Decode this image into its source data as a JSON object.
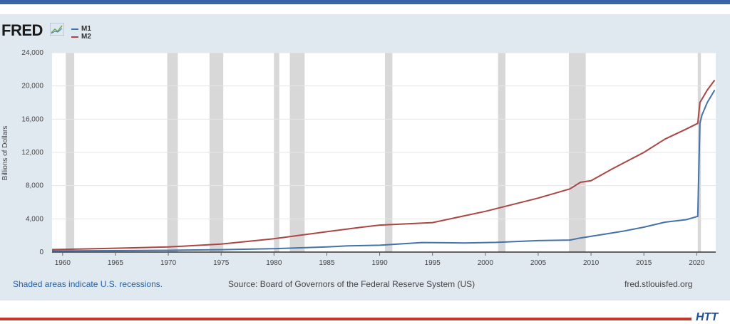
{
  "brand": {
    "logo": "FRED",
    "url": "fred.stlouisfed.org",
    "corner_logo": "HTT"
  },
  "footer": {
    "recessions_note": "Shaded areas indicate U.S. recessions.",
    "source": "Source: Board of Governors of the Federal Reserve System (US)",
    "url": "fred.stlouisfed.org"
  },
  "colors": {
    "m1": "#4572a7",
    "m2": "#aa4643",
    "recession": "#d8d8d8",
    "panel": "#e1e9f0"
  },
  "chart_data": {
    "type": "line",
    "title": "",
    "xlabel": "",
    "ylabel": "Billions of Dollars",
    "xlim": [
      1959,
      2021.8
    ],
    "ylim": [
      0,
      24000
    ],
    "yticks": [
      0,
      4000,
      8000,
      12000,
      16000,
      20000,
      24000
    ],
    "ytick_labels": [
      "0",
      "4,000",
      "8,000",
      "12,000",
      "16,000",
      "20,000",
      "24,000"
    ],
    "xticks": [
      1960,
      1965,
      1970,
      1975,
      1980,
      1985,
      1990,
      1995,
      2000,
      2005,
      2010,
      2015,
      2020
    ],
    "xtick_labels": [
      "1960",
      "1965",
      "1970",
      "1975",
      "1980",
      "1985",
      "1990",
      "1995",
      "2000",
      "2005",
      "2010",
      "2015",
      "2020"
    ],
    "legend": [
      "M1",
      "M2"
    ],
    "recessions": [
      [
        1960.3,
        1961.1
      ],
      [
        1969.9,
        1970.9
      ],
      [
        1973.9,
        1975.2
      ],
      [
        1980.0,
        1980.5
      ],
      [
        1981.5,
        1982.9
      ],
      [
        1990.5,
        1991.2
      ],
      [
        2001.2,
        2001.9
      ],
      [
        2007.9,
        2009.5
      ],
      [
        2020.1,
        2020.4
      ]
    ],
    "series": [
      {
        "name": "M1",
        "x": [
          1959,
          1965,
          1970,
          1975,
          1980,
          1985,
          1987,
          1990,
          1994,
          1998,
          2001,
          2005,
          2008,
          2009,
          2011,
          2013,
          2015,
          2017,
          2019,
          2020.1,
          2020.3,
          2020.5,
          2021,
          2021.7
        ],
        "y": [
          140,
          170,
          215,
          290,
          410,
          620,
          750,
          820,
          1150,
          1100,
          1170,
          1380,
          1450,
          1700,
          2100,
          2500,
          3000,
          3600,
          3900,
          4300,
          15500,
          16500,
          18000,
          19500
        ]
      },
      {
        "name": "M2",
        "x": [
          1959,
          1965,
          1970,
          1975,
          1980,
          1985,
          1988,
          1990,
          1995,
          2000,
          2005,
          2008,
          2009,
          2010,
          2012,
          2015,
          2017,
          2019,
          2020.1,
          2020.3,
          2021,
          2021.7
        ],
        "y": [
          300,
          460,
          620,
          960,
          1600,
          2450,
          2950,
          3250,
          3550,
          4900,
          6500,
          7600,
          8400,
          8600,
          10000,
          12000,
          13600,
          14800,
          15500,
          18000,
          19500,
          20700
        ]
      }
    ]
  }
}
